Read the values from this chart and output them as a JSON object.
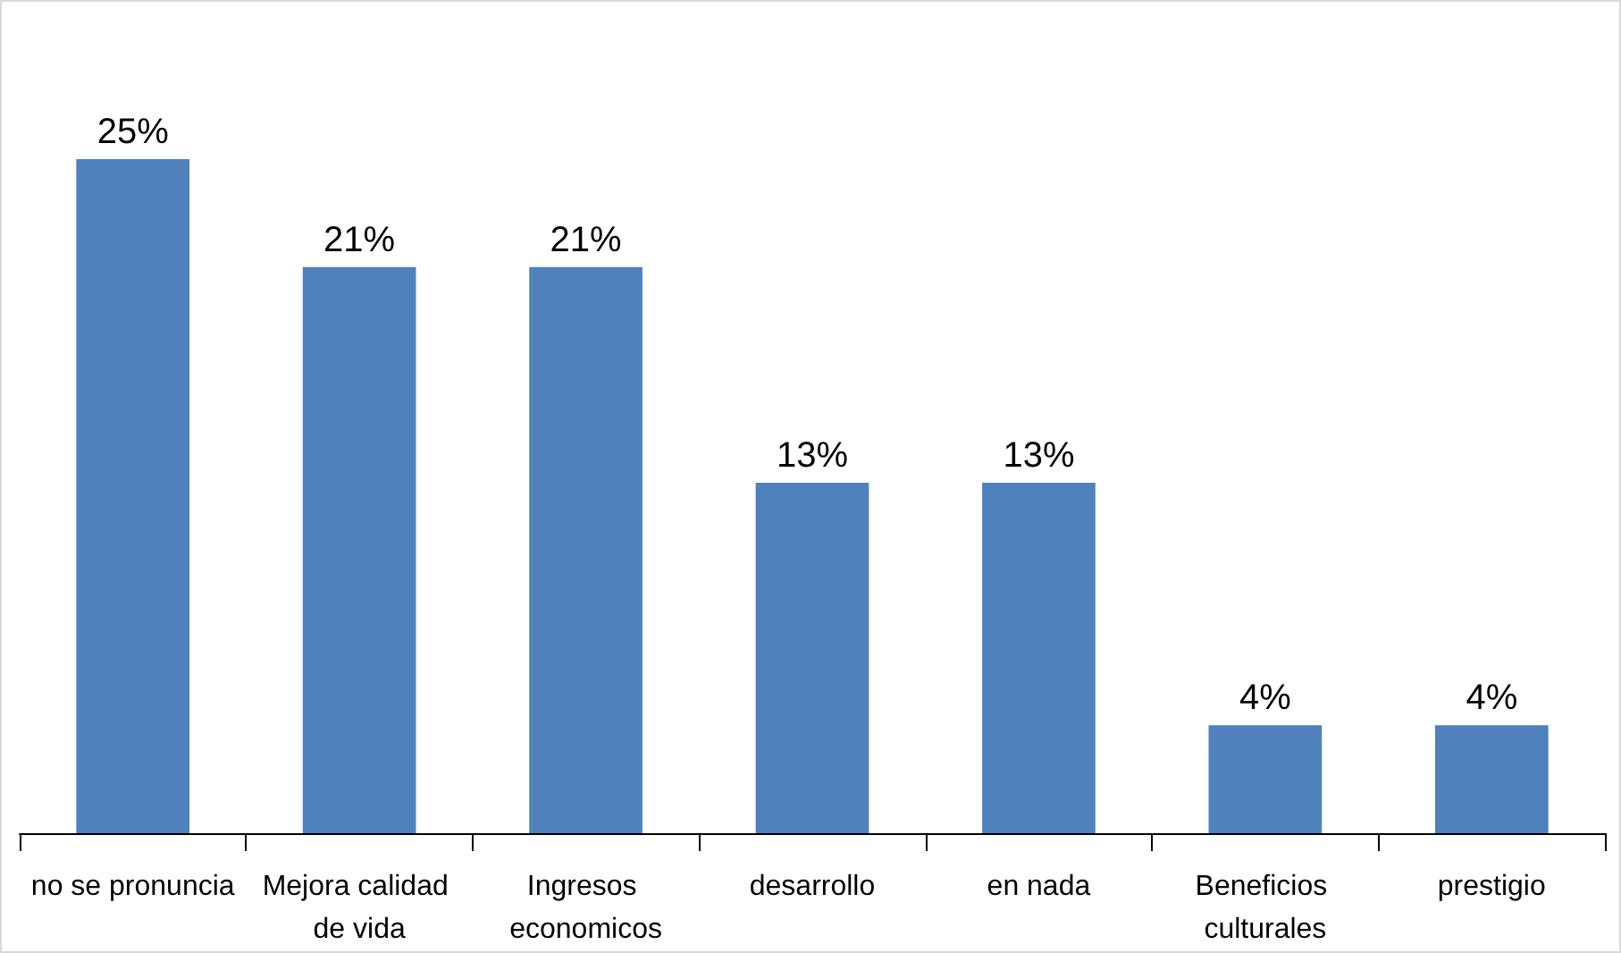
{
  "chart_data": {
    "type": "bar",
    "categories": [
      "no se pronuncia",
      "Mejora calidad de vida",
      "Ingresos economicos",
      "desarrollo",
      "en nada",
      "Beneficios culturales",
      "prestigio"
    ],
    "values": [
      25,
      21,
      21,
      13,
      13,
      4,
      4
    ],
    "value_labels": [
      "25%",
      "21%",
      "21%",
      "13%",
      "13%",
      "4%",
      "4%"
    ],
    "color": "#4f81bd",
    "grid": false
  }
}
